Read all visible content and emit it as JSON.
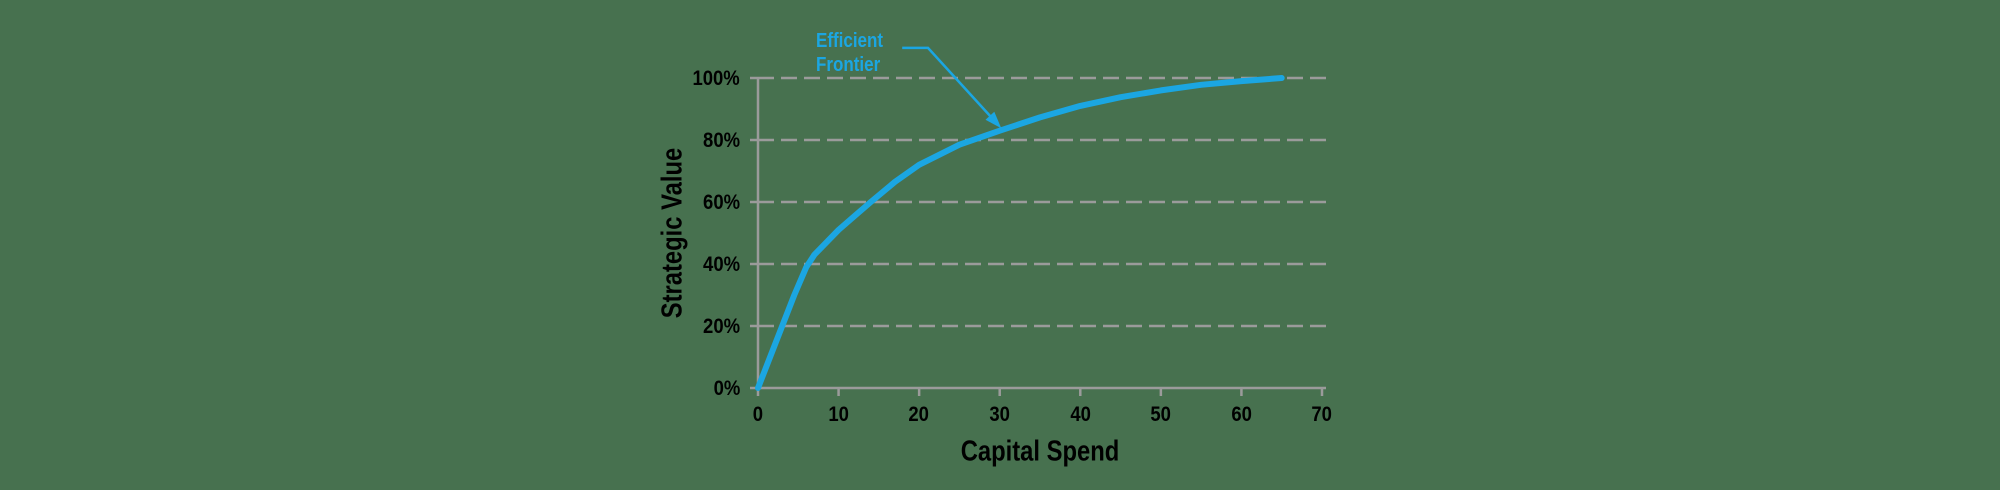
{
  "colors": {
    "background": "#47714F",
    "accent": "#1BA6E2",
    "grid": "#9B9B9B",
    "text": "#000000"
  },
  "annotation": {
    "line1": "Efficient",
    "line2": "Frontier",
    "leader_points_data": [
      [
        17.9,
        109.7
      ],
      [
        21.1,
        109.7
      ],
      [
        29.7,
        85.2
      ]
    ]
  },
  "chart_data": {
    "type": "line",
    "title": "",
    "xlabel": "Capital Spend",
    "ylabel": "Strategic Value",
    "xlim": [
      0,
      70
    ],
    "ylim": [
      0,
      100
    ],
    "x_ticks": [
      0,
      10,
      20,
      30,
      40,
      50,
      60,
      70
    ],
    "y_ticks": [
      {
        "value": 0,
        "label": "0%"
      },
      {
        "value": 20,
        "label": "20%"
      },
      {
        "value": 40,
        "label": "40%"
      },
      {
        "value": 60,
        "label": "60%"
      },
      {
        "value": 80,
        "label": "80%"
      },
      {
        "value": 100,
        "label": "100%"
      }
    ],
    "grid": "horizontal-dashed",
    "legend": "none",
    "annotation_text": "Efficient Frontier",
    "annotation_arrow_target": [
      30,
      84
    ],
    "series": [
      {
        "name": "Efficient Frontier",
        "color": "#1BA6E2",
        "points": [
          [
            0,
            0
          ],
          [
            1.5,
            10
          ],
          [
            3,
            20
          ],
          [
            4.5,
            30
          ],
          [
            6,
            39
          ],
          [
            7,
            43
          ],
          [
            10,
            51
          ],
          [
            12,
            55.5
          ],
          [
            14,
            60
          ],
          [
            17,
            66.5
          ],
          [
            20,
            72
          ],
          [
            25,
            78.5
          ],
          [
            30,
            83
          ],
          [
            35,
            87.3
          ],
          [
            40,
            91
          ],
          [
            45,
            93.8
          ],
          [
            50,
            96
          ],
          [
            55,
            97.8
          ],
          [
            60,
            99
          ],
          [
            65,
            100
          ]
        ]
      }
    ]
  }
}
